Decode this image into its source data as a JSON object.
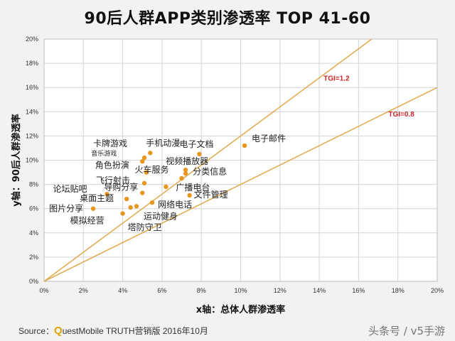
{
  "chart_data": {
    "type": "scatter",
    "title": "90后人群APP类别渗透率 TOP 41-60",
    "xlabel": "x轴：总体人群渗透率",
    "ylabel": "y轴：90后人群渗透率",
    "xlim": [
      0,
      20
    ],
    "ylim": [
      0,
      20
    ],
    "x_ticks": [
      "0%",
      "2%",
      "4%",
      "6%",
      "8%",
      "10%",
      "12%",
      "14%",
      "16%",
      "18%",
      "20%"
    ],
    "y_ticks": [
      "0%",
      "2%",
      "4%",
      "6%",
      "8%",
      "10%",
      "12%",
      "14%",
      "16%",
      "18%",
      "20%"
    ],
    "grid": true,
    "reference_lines": [
      {
        "name": "TGI=1.2",
        "slope": 1.2
      },
      {
        "name": "TGI=0.8",
        "slope": 0.8
      }
    ],
    "points": [
      {
        "label": "电子邮件",
        "x": 10.2,
        "y": 11.2
      },
      {
        "label": "电子文档",
        "x": 7.9,
        "y": 10.5
      },
      {
        "label": "手机动漫",
        "x": 5.4,
        "y": 10.6
      },
      {
        "label": "视频播放器",
        "x": 7.2,
        "y": 9.2
      },
      {
        "label": "卡牌游戏",
        "x": 5.1,
        "y": 10.2
      },
      {
        "label": "音乐游戏",
        "x": 5.0,
        "y": 9.9
      },
      {
        "label": "角色扮演",
        "x": 5.2,
        "y": 9.0
      },
      {
        "label": "火车服务",
        "x": 7.0,
        "y": 8.5
      },
      {
        "label": "分类信息",
        "x": 7.2,
        "y": 8.9
      },
      {
        "label": "飞行射击",
        "x": 5.1,
        "y": 8.1
      },
      {
        "label": "广播电台",
        "x": 6.2,
        "y": 7.8
      },
      {
        "label": "论坛贴吧",
        "x": 3.2,
        "y": 7.2
      },
      {
        "label": "导购分享",
        "x": 5.0,
        "y": 7.3
      },
      {
        "label": "文件管理",
        "x": 7.4,
        "y": 7.1
      },
      {
        "label": "桌面主题",
        "x": 4.2,
        "y": 6.8
      },
      {
        "label": "网络电话",
        "x": 5.5,
        "y": 6.5
      },
      {
        "label": "图片分享",
        "x": 2.5,
        "y": 6.0
      },
      {
        "label": "运动健身",
        "x": 4.7,
        "y": 6.2
      },
      {
        "label": "模拟经营",
        "x": 4.0,
        "y": 5.6
      },
      {
        "label": "塔防守卫",
        "x": 4.4,
        "y": 6.1
      }
    ],
    "colors": {
      "points": "#e7961e",
      "ref_lines": "#e3ad55",
      "ref_labels": "#c9242a",
      "grid": "#d4d4d4"
    }
  },
  "footer": {
    "source_prefix": "Source：",
    "source_q": "Q",
    "source_rest": "uestMobile TRUTH营销版 2016年10月",
    "watermark": "头条号 / v5手游"
  }
}
